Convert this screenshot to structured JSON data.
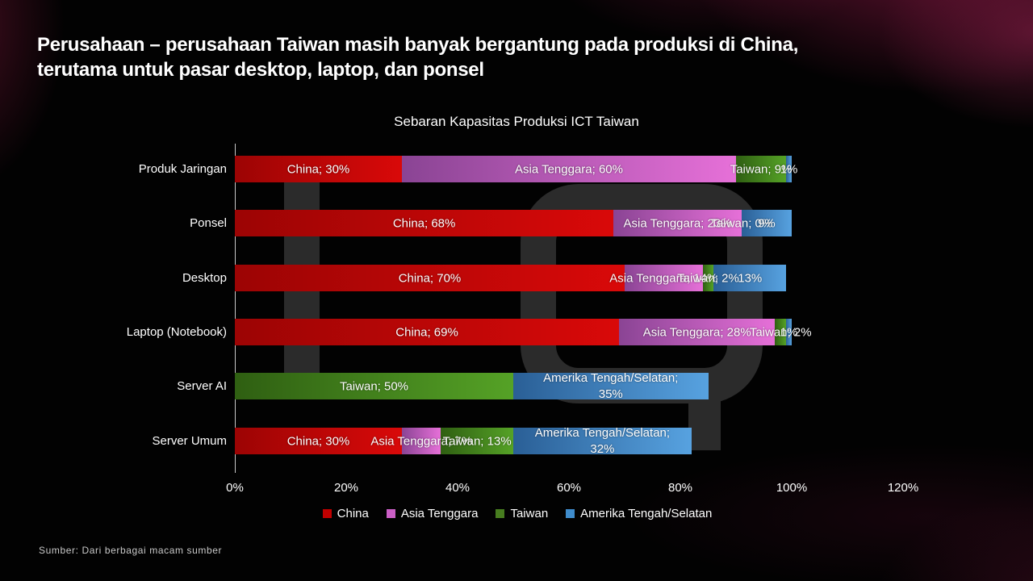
{
  "slide": {
    "title_line1": "Perusahaan – perusahaan Taiwan masih banyak bergantung pada produksi di China,",
    "title_line2": "terutama untuk pasar desktop, laptop, dan ponsel",
    "source": "Sumber: Dari berbagai macam sumber"
  },
  "chart_data": {
    "type": "bar",
    "orientation": "horizontal",
    "stacked": true,
    "title": "Sebaran Kapasitas Produksi ICT Taiwan",
    "xlabel": "",
    "ylabel": "",
    "xlim": [
      0,
      120
    ],
    "x_ticks": [
      "0%",
      "20%",
      "40%",
      "60%",
      "80%",
      "100%",
      "120%"
    ],
    "grid": false,
    "legend_position": "bottom",
    "series": [
      {
        "name": "China",
        "color": "#c00000",
        "gradient": [
          "#9c0404",
          "#d90909"
        ]
      },
      {
        "name": "Asia Tenggara",
        "color": "#cb5fc6",
        "gradient": [
          "#8a4494",
          "#e670d8"
        ]
      },
      {
        "name": "Taiwan",
        "color": "#477d1f",
        "gradient": [
          "#2f5f12",
          "#55a226"
        ]
      },
      {
        "name": "Amerika Tengah/Selatan",
        "color": "#3f8ccc",
        "gradient": [
          "#2a5f96",
          "#57a2e0"
        ]
      }
    ],
    "rows": [
      {
        "category": "Produk Jaringan",
        "segments": [
          {
            "series": "China",
            "value": 30,
            "label": "China; 30%"
          },
          {
            "series": "Asia Tenggara",
            "value": 60,
            "label": "Asia Tenggara; 60%"
          },
          {
            "series": "Taiwan",
            "value": 9,
            "label": "Taiwan; 9%"
          },
          {
            "series": "Amerika Tengah/Selatan",
            "value": 1,
            "label": "1%"
          }
        ]
      },
      {
        "category": "Ponsel",
        "segments": [
          {
            "series": "China",
            "value": 68,
            "label": "China; 68%"
          },
          {
            "series": "Asia Tenggara",
            "value": 23,
            "label": "Asia Tenggara; 23%"
          },
          {
            "series": "Taiwan",
            "value": 0,
            "label": "Taiwan; 0%"
          },
          {
            "series": "Amerika Tengah/Selatan",
            "value": 9,
            "label": "9%"
          }
        ]
      },
      {
        "category": "Desktop",
        "segments": [
          {
            "series": "China",
            "value": 70,
            "label": "China; 70%"
          },
          {
            "series": "Asia Tenggara",
            "value": 14,
            "label": "Asia Tenggara; 14%"
          },
          {
            "series": "Taiwan",
            "value": 2,
            "label": "Taiwan; 2%"
          },
          {
            "series": "Amerika Tengah/Selatan",
            "value": 13,
            "label": "13%"
          }
        ]
      },
      {
        "category": "Laptop (Notebook)",
        "segments": [
          {
            "series": "China",
            "value": 69,
            "label": "China; 69%"
          },
          {
            "series": "Asia Tenggara",
            "value": 28,
            "label": "Asia Tenggara; 28%"
          },
          {
            "series": "Taiwan",
            "value": 2,
            "label": "Taiwan; 2%"
          },
          {
            "series": "Amerika Tengah/Selatan",
            "value": 1,
            "label": "1%"
          }
        ]
      },
      {
        "category": "Server AI",
        "segments": [
          {
            "series": "Taiwan",
            "value": 50,
            "label": "Taiwan; 50%"
          },
          {
            "series": "Amerika Tengah/Selatan",
            "value": 35,
            "label": "Amerika Tengah/Selatan; 35%",
            "wrap": true
          }
        ]
      },
      {
        "category": "Server Umum",
        "segments": [
          {
            "series": "China",
            "value": 30,
            "label": "China; 30%"
          },
          {
            "series": "Asia Tenggara",
            "value": 7,
            "label": "Asia Tenggara; 7%"
          },
          {
            "series": "Taiwan",
            "value": 13,
            "label": "Taiwan; 13%"
          },
          {
            "series": "Amerika Tengah/Selatan",
            "value": 32,
            "label": "Amerika Tengah/Selatan; 32%",
            "wrap": true
          }
        ]
      }
    ],
    "legend": [
      "China",
      "Asia Tenggara",
      "Taiwan",
      "Amerika Tengah/Selatan"
    ]
  }
}
